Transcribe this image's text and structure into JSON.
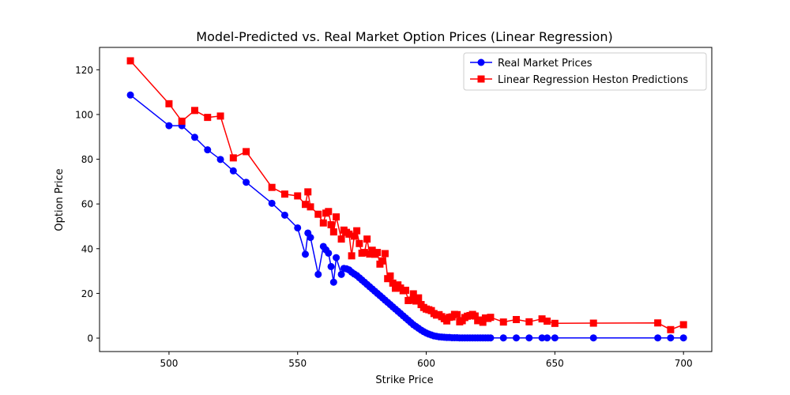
{
  "chart_data": {
    "type": "line",
    "title": "Model-Predicted vs. Real Market Option Prices (Linear Regression)",
    "xlabel": "Strike Price",
    "ylabel": "Option Price",
    "xlim": [
      473,
      711
    ],
    "ylim": [
      -6,
      130
    ],
    "xticks": [
      500,
      550,
      600,
      650,
      700
    ],
    "yticks": [
      0,
      20,
      40,
      60,
      80,
      100,
      120
    ],
    "grid": false,
    "legend_position": "top-right",
    "series": [
      {
        "name": "Real Market Prices",
        "color": "#0000ff",
        "marker": "circle",
        "points": [
          [
            485,
            108.7
          ],
          [
            500,
            95.0
          ],
          [
            505,
            95.0
          ],
          [
            510,
            89.8
          ],
          [
            515,
            84.2
          ],
          [
            520,
            79.9
          ],
          [
            525,
            74.8
          ],
          [
            530,
            69.7
          ],
          [
            540,
            60.3
          ],
          [
            545,
            55.0
          ],
          [
            550,
            49.3
          ],
          [
            553,
            37.5
          ],
          [
            554,
            47.0
          ],
          [
            555,
            45.0
          ],
          [
            558,
            28.5
          ],
          [
            560,
            41.0
          ],
          [
            561,
            39.5
          ],
          [
            562,
            38.0
          ],
          [
            563,
            32.0
          ],
          [
            564,
            25.0
          ],
          [
            565,
            36.0
          ],
          [
            567,
            28.5
          ],
          [
            568,
            31.2
          ],
          [
            569,
            31.0
          ],
          [
            570,
            30.5
          ],
          [
            571,
            29.5
          ],
          [
            572,
            28.7
          ],
          [
            573,
            28.0
          ],
          [
            574,
            27.0
          ],
          [
            575,
            26.0
          ],
          [
            576,
            25.0
          ],
          [
            577,
            24.0
          ],
          [
            578,
            23.0
          ],
          [
            579,
            22.0
          ],
          [
            580,
            21.0
          ],
          [
            581,
            20.0
          ],
          [
            582,
            19.0
          ],
          [
            583,
            18.0
          ],
          [
            584,
            17.0
          ],
          [
            585,
            16.0
          ],
          [
            586,
            15.0
          ],
          [
            587,
            14.0
          ],
          [
            588,
            13.0
          ],
          [
            589,
            12.0
          ],
          [
            590,
            11.0
          ],
          [
            591,
            10.0
          ],
          [
            592,
            9.0
          ],
          [
            593,
            8.0
          ],
          [
            594,
            7.0
          ],
          [
            595,
            6.0
          ],
          [
            596,
            5.2
          ],
          [
            597,
            4.4
          ],
          [
            598,
            3.6
          ],
          [
            599,
            2.9
          ],
          [
            600,
            2.3
          ],
          [
            601,
            1.8
          ],
          [
            602,
            1.4
          ],
          [
            603,
            1.0
          ],
          [
            604,
            0.8
          ],
          [
            605,
            0.6
          ],
          [
            606,
            0.5
          ],
          [
            607,
            0.4
          ],
          [
            608,
            0.3
          ],
          [
            609,
            0.3
          ],
          [
            610,
            0.2
          ],
          [
            611,
            0.2
          ],
          [
            612,
            0.2
          ],
          [
            613,
            0.1
          ],
          [
            614,
            0.1
          ],
          [
            615,
            0.1
          ],
          [
            616,
            0.1
          ],
          [
            617,
            0.1
          ],
          [
            618,
            0.1
          ],
          [
            619,
            0.1
          ],
          [
            620,
            0.1
          ],
          [
            621,
            0.1
          ],
          [
            622,
            0.1
          ],
          [
            623,
            0.1
          ],
          [
            624,
            0.1
          ],
          [
            625,
            0.1
          ],
          [
            630,
            0.1
          ],
          [
            635,
            0.1
          ],
          [
            640,
            0.1
          ],
          [
            645,
            0.1
          ],
          [
            647,
            0.1
          ],
          [
            650,
            0.1
          ],
          [
            665,
            0.1
          ],
          [
            690,
            0.1
          ],
          [
            695,
            0.1
          ],
          [
            700,
            0.1
          ]
        ]
      },
      {
        "name": "Linear Regression Heston Predictions",
        "color": "#ff0000",
        "marker": "square",
        "points": [
          [
            485,
            124.0
          ],
          [
            500,
            104.8
          ],
          [
            505,
            97.0
          ],
          [
            510,
            101.8
          ],
          [
            515,
            98.7
          ],
          [
            520,
            99.3
          ],
          [
            525,
            80.6
          ],
          [
            530,
            83.4
          ],
          [
            540,
            67.4
          ],
          [
            545,
            64.4
          ],
          [
            550,
            63.6
          ],
          [
            553,
            59.8
          ],
          [
            554,
            65.4
          ],
          [
            555,
            58.7
          ],
          [
            558,
            55.4
          ],
          [
            560,
            51.5
          ],
          [
            561,
            55.9
          ],
          [
            562,
            56.6
          ],
          [
            563,
            50.7
          ],
          [
            564,
            47.5
          ],
          [
            565,
            54.2
          ],
          [
            567,
            44.3
          ],
          [
            568,
            48.3
          ],
          [
            569,
            47.3
          ],
          [
            570,
            46.5
          ],
          [
            571,
            36.8
          ],
          [
            572,
            45.6
          ],
          [
            573,
            48.0
          ],
          [
            574,
            42.3
          ],
          [
            575,
            38.0
          ],
          [
            576,
            38.3
          ],
          [
            577,
            44.3
          ],
          [
            578,
            37.6
          ],
          [
            579,
            39.3
          ],
          [
            580,
            37.5
          ],
          [
            581,
            38.3
          ],
          [
            582,
            33.1
          ],
          [
            583,
            34.5
          ],
          [
            584,
            37.8
          ],
          [
            585,
            26.6
          ],
          [
            586,
            27.8
          ],
          [
            587,
            24.6
          ],
          [
            588,
            22.3
          ],
          [
            589,
            23.8
          ],
          [
            590,
            22.4
          ],
          [
            591,
            21.2
          ],
          [
            592,
            21.4
          ],
          [
            593,
            16.8
          ],
          [
            594,
            17.0
          ],
          [
            595,
            19.8
          ],
          [
            596,
            16.6
          ],
          [
            597,
            18.0
          ],
          [
            598,
            15.0
          ],
          [
            599,
            13.7
          ],
          [
            600,
            13.0
          ],
          [
            601,
            12.7
          ],
          [
            602,
            12.3
          ],
          [
            603,
            11.0
          ],
          [
            604,
            10.3
          ],
          [
            605,
            10.5
          ],
          [
            606,
            9.6
          ],
          [
            607,
            8.7
          ],
          [
            608,
            7.7
          ],
          [
            609,
            9.3
          ],
          [
            610,
            9.5
          ],
          [
            611,
            10.6
          ],
          [
            612,
            10.5
          ],
          [
            613,
            7.3
          ],
          [
            614,
            7.8
          ],
          [
            615,
            9.2
          ],
          [
            616,
            9.8
          ],
          [
            617,
            10.1
          ],
          [
            618,
            10.6
          ],
          [
            619,
            9.9
          ],
          [
            620,
            7.8
          ],
          [
            621,
            8.1
          ],
          [
            622,
            7.1
          ],
          [
            623,
            9.0
          ],
          [
            624,
            8.8
          ],
          [
            625,
            9.3
          ],
          [
            630,
            7.2
          ],
          [
            635,
            8.3
          ],
          [
            640,
            7.3
          ],
          [
            645,
            8.6
          ],
          [
            647,
            7.6
          ],
          [
            650,
            6.6
          ],
          [
            665,
            6.7
          ],
          [
            690,
            6.8
          ],
          [
            695,
            3.8
          ],
          [
            700,
            6.0
          ]
        ]
      }
    ]
  }
}
